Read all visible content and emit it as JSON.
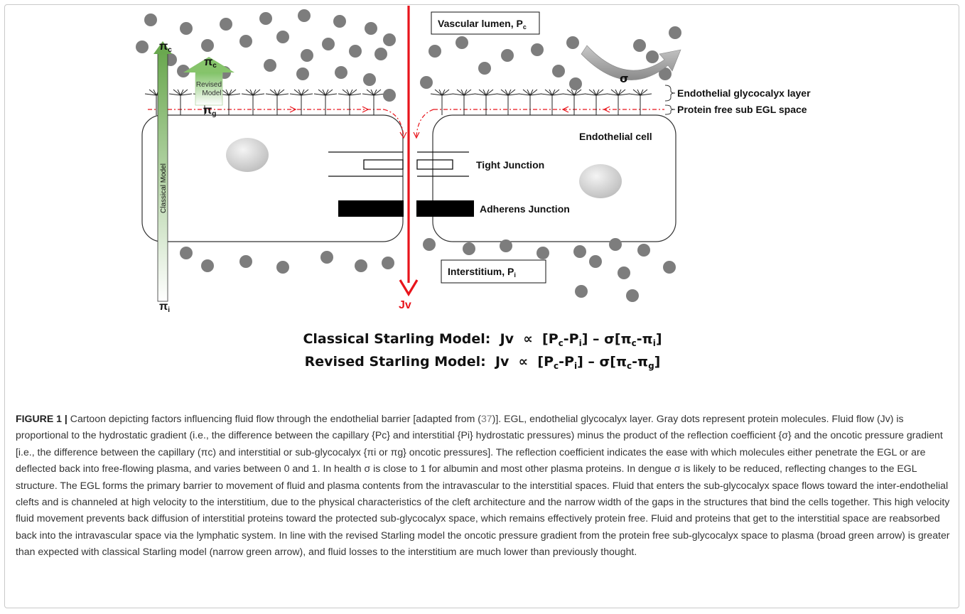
{
  "diagram": {
    "lumen_label": "Vascular lumen, P",
    "lumen_sub": "c",
    "interstitium_label": "Interstitium, P",
    "interstitium_sub": "i",
    "egl_label": "Endothelial glycocalyx layer",
    "protein_free_label": "Protein free sub EGL space",
    "endothelial_cell_label": "Endothelial cell",
    "tight_junction_label": "Tight Junction",
    "adherens_junction_label": "Adherens Junction",
    "jv_label": "Jv",
    "sigma_label": "σ",
    "classical_model_label": "Classical Model",
    "revised_model_label_1": "Revised",
    "revised_model_label_2": "Model",
    "pi_c_symbol": "π",
    "pi_c_sub": "c",
    "pi_g_symbol": "π",
    "pi_g_sub": "g",
    "pi_i_symbol": "π",
    "pi_i_sub": "i",
    "colors": {
      "protein_dot": "#7d7d7d",
      "flow_arrow": "#e8141b",
      "green_arrow": "#79b15a",
      "sigma_arrow": "#9a9a9a",
      "junction_block": "#000000"
    }
  },
  "equations": {
    "classical": "Classical Starling Model:  Jv  ∝  [Pc-Pi] – σ[πc-πi]",
    "revised": "Revised Starling Model:  Jv  ∝  [Pc-Pi] – σ[πc-πg]"
  },
  "caption": {
    "label": "FIGURE 1 |",
    "text_before_ref": " Cartoon depicting factors influencing fluid flow through the endothelial barrier [adapted from (",
    "ref": "37",
    "text_after_ref": ")]. EGL, endothelial glycocalyx layer. Gray dots represent protein molecules. Fluid flow (Jv) is proportional to the hydrostatic gradient (i.e., the difference between the capillary {Pc} and interstitial {Pi} hydrostatic pressures) minus the product of the reflection coefficient {σ} and the oncotic pressure gradient [i.e., the difference between the capillary (πc) and interstitial or sub-glycocalyx {πi or πg} oncotic pressures]. The reflection coefficient indicates the ease with which molecules either penetrate the EGL or are deflected back into free-flowing plasma, and varies between 0 and 1. In health σ is close to 1 for albumin and most other plasma proteins. In dengue σ is likely to be reduced, reflecting changes to the EGL structure. The EGL forms the primary barrier to movement of fluid and plasma contents from the intravascular to the interstitial spaces. Fluid that enters the sub-glycocalyx space flows toward the inter-endothelial clefts and is channeled at high velocity to the interstitium, due to the physical characteristics of the cleft architecture and the narrow width of the gaps in the structures that bind the cells together. This high velocity fluid movement prevents back diffusion of interstitial proteins toward the protected sub-glycocalyx space, which remains effectively protein free. Fluid and proteins that get to the interstitial space are reabsorbed back into the intravascular space via the lymphatic system. In line with the revised Starling model the oncotic pressure gradient from the protein free sub-glycocalyx space to plasma (broad green arrow) is greater than expected with classical Starling model (narrow green arrow), and fluid losses to the interstitium are much lower than previously thought."
  }
}
